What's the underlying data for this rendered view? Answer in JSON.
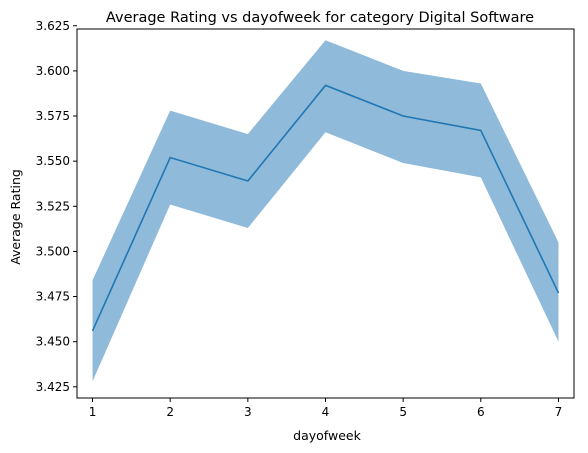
{
  "chart_data": {
    "type": "line",
    "title": "Average Rating vs dayofweek for category Digital Software",
    "xlabel": "dayofweek",
    "ylabel": "Average Rating",
    "x": [
      1,
      2,
      3,
      4,
      5,
      6,
      7
    ],
    "series": [
      {
        "values": [
          3.456,
          3.552,
          3.539,
          3.592,
          3.575,
          3.567,
          3.477
        ],
        "lower": [
          3.428,
          3.526,
          3.513,
          3.566,
          3.549,
          3.541,
          3.45
        ],
        "upper": [
          3.484,
          3.578,
          3.565,
          3.617,
          3.6,
          3.593,
          3.505
        ]
      }
    ],
    "xlim": [
      0.8,
      7.2
    ],
    "ylim": [
      3.4188,
      3.6232
    ],
    "xticks": [
      1,
      2,
      3,
      4,
      5,
      6,
      7
    ],
    "xtick_labels": [
      "1",
      "2",
      "3",
      "4",
      "5",
      "6",
      "7"
    ],
    "yticks": [
      3.425,
      3.45,
      3.475,
      3.5,
      3.525,
      3.55,
      3.575,
      3.6,
      3.625
    ],
    "ytick_labels": [
      "3.425",
      "3.450",
      "3.475",
      "3.500",
      "3.525",
      "3.550",
      "3.575",
      "3.600",
      "3.625"
    ],
    "grid": false,
    "colors": {
      "line": "#1f77b4",
      "band": "#8fbada"
    }
  }
}
